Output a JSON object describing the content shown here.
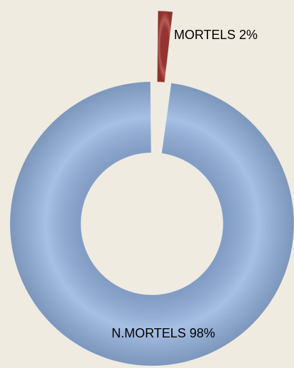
{
  "chart_data": {
    "type": "donut",
    "categories": [
      "MORTELS",
      "N.MORTELS"
    ],
    "values": [
      2,
      98
    ],
    "value_labels": [
      "2%",
      "98%"
    ],
    "colors": [
      "#a83a35",
      "#93b1de"
    ]
  }
}
